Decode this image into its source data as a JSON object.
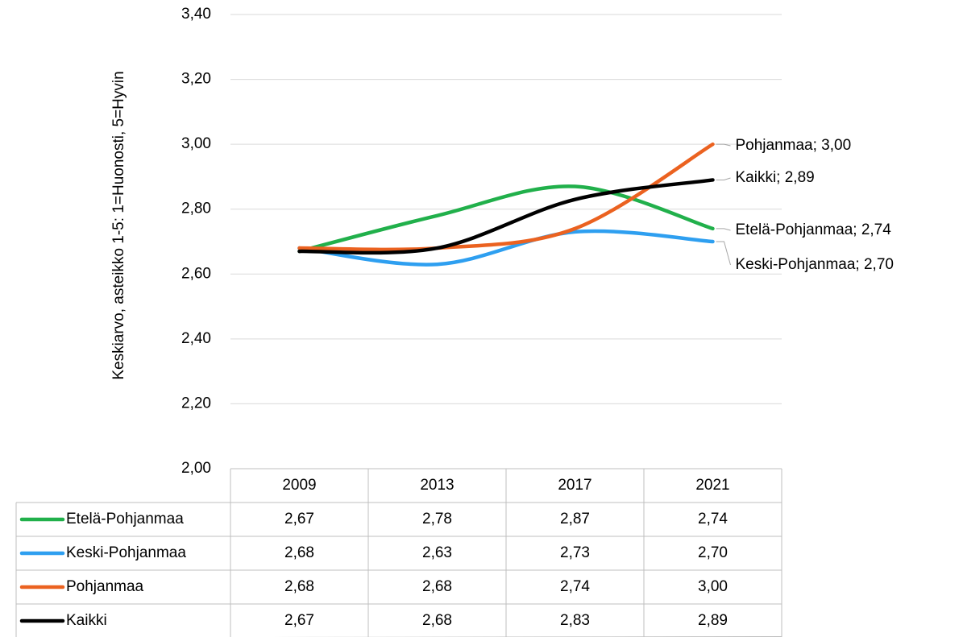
{
  "chart_data": {
    "type": "line",
    "y_label": "Keskiarvo, asteikko 1-5: 1=Huonosti, 5=Hyvin",
    "categories": [
      "2009",
      "2013",
      "2017",
      "2021"
    ],
    "ylim": [
      2.0,
      3.4
    ],
    "yticks": [
      {
        "value": 2.0,
        "label": "2,00"
      },
      {
        "value": 2.2,
        "label": "2,20"
      },
      {
        "value": 2.4,
        "label": "2,40"
      },
      {
        "value": 2.6,
        "label": "2,60"
      },
      {
        "value": 2.8,
        "label": "2,80"
      },
      {
        "value": 3.0,
        "label": "3,00"
      },
      {
        "value": 3.2,
        "label": "3,20"
      },
      {
        "value": 3.4,
        "label": "3,40"
      }
    ],
    "grid": true,
    "smooth": true,
    "series": [
      {
        "name": "Etelä-Pohjanmaa",
        "color": "#21b04b",
        "values": [
          2.67,
          2.78,
          2.87,
          2.74
        ],
        "value_labels": [
          "2,67",
          "2,78",
          "2,87",
          "2,74"
        ],
        "end_label": "Etelä-Pohjanmaa; 2,74"
      },
      {
        "name": "Keski-Pohjanmaa",
        "color": "#2e9ff0",
        "values": [
          2.68,
          2.63,
          2.73,
          2.7
        ],
        "value_labels": [
          "2,68",
          "2,63",
          "2,73",
          "2,70"
        ],
        "end_label": "Keski-Pohjanmaa; 2,70"
      },
      {
        "name": "Pohjanmaa",
        "color": "#eb6220",
        "values": [
          2.68,
          2.68,
          2.74,
          3.0
        ],
        "value_labels": [
          "2,68",
          "2,68",
          "2,74",
          "3,00"
        ],
        "end_label": "Pohjanmaa; 3,00"
      },
      {
        "name": "Kaikki",
        "color": "#000000",
        "values": [
          2.67,
          2.68,
          2.83,
          2.89
        ],
        "value_labels": [
          "2,67",
          "2,68",
          "2,83",
          "2,89"
        ],
        "end_label": "Kaikki; 2,89"
      }
    ]
  }
}
